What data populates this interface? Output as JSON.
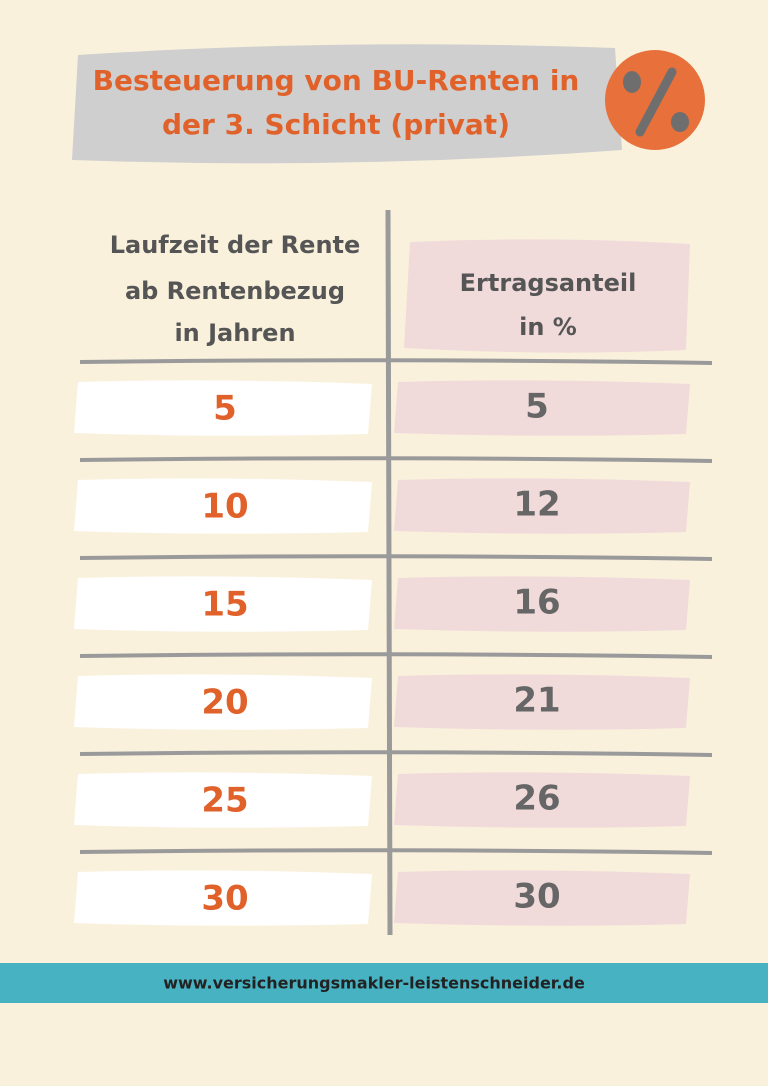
{
  "header": {
    "title": [
      "Besteuerung von BU-Renten in",
      "der 3. Schicht (privat)"
    ]
  },
  "table": {
    "columns": [
      [
        "Laufzeit der Rente",
        "ab Rentenbezug",
        "in Jahren"
      ],
      [
        "Ertragsanteil",
        "in %"
      ]
    ],
    "rows": [
      [
        5,
        5
      ],
      [
        10,
        12
      ],
      [
        15,
        16
      ],
      [
        20,
        21
      ],
      [
        25,
        26
      ],
      [
        30,
        30
      ]
    ]
  },
  "footer": {
    "url": "www.versicherungsmakler-leistenschneider.de"
  }
}
